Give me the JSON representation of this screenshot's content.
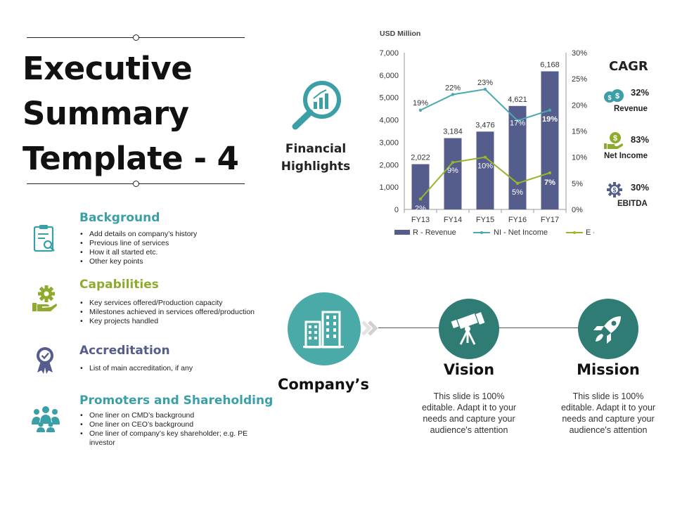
{
  "title": "Executive Summary Template - 4",
  "sections": [
    {
      "heading": "Background",
      "icon": "clipboard-search-icon",
      "color": "#3a9fa6",
      "bullets": [
        "Add details on company’s history",
        "Previous line of services",
        "How it all started etc.",
        "Other key points"
      ]
    },
    {
      "heading": "Capabilities",
      "icon": "gear-hand-icon",
      "color": "#8fab2e",
      "bullets": [
        "Key services offered/Production capacity",
        "Milestones achieved in services offered/production",
        "Key projects handled"
      ]
    },
    {
      "heading": "Accreditation",
      "icon": "award-ribbon-icon",
      "color": "#545d8c",
      "bullets": [
        "List of main accreditation, if any"
      ]
    },
    {
      "heading": "Promoters and Shareholding",
      "icon": "people-group-icon",
      "color": "#3a9fa6",
      "bullets": [
        "One liner on CMD’s background",
        "One liner on CEO’s background",
        "One liner of company’s key shareholder; e.g. PE investor"
      ]
    }
  ],
  "financial": {
    "label": "Financial Highlights",
    "icon": "magnifier-chart-icon"
  },
  "chart_data": {
    "type": "bar",
    "ylabel": "USD Million",
    "categories": [
      "FY13",
      "FY14",
      "FY15",
      "FY16",
      "FY17"
    ],
    "ylim": [
      0,
      7000
    ],
    "y_ticks": [
      "0",
      "1,000",
      "2,000",
      "3,000",
      "4,000",
      "5,000",
      "6,000",
      "7,000"
    ],
    "y2lim": [
      0,
      30
    ],
    "y2_ticks": [
      "0%",
      "5%",
      "10%",
      "15%",
      "20%",
      "25%",
      "30%"
    ],
    "series": [
      {
        "name": "R - Revenue",
        "type": "bar",
        "axis": "left",
        "values": [
          2022,
          3184,
          3476,
          4621,
          6168
        ],
        "labels": [
          "2,022",
          "3,184",
          "3,476",
          "4,621",
          "6,168"
        ],
        "color": "#545d8c"
      },
      {
        "name": "NI - Net Income",
        "type": "line",
        "axis": "right",
        "values": [
          19,
          22,
          23,
          17,
          19
        ],
        "labels": [
          "19%",
          "22%",
          "23%",
          "17%",
          "19%"
        ],
        "color": "#4aa9b0"
      },
      {
        "name": "E - EBITDA",
        "type": "line",
        "axis": "right",
        "values": [
          2,
          9,
          10,
          5,
          7
        ],
        "labels": [
          "2%",
          "9%",
          "10%",
          "5%",
          "7%"
        ],
        "color": "#9ab52b"
      }
    ],
    "grid": false,
    "legend": "bottom"
  },
  "cagr": {
    "title": "CAGR",
    "items": [
      {
        "value": "32%",
        "name": "Revenue",
        "icon": "money-bag-icon"
      },
      {
        "value": "83%",
        "name": "Net Income",
        "icon": "dollar-hand-icon"
      },
      {
        "value": "30%",
        "name": "EBITDA",
        "icon": "dollar-gear-icon"
      }
    ]
  },
  "company": {
    "label": "Company’s",
    "icon": "building-icon"
  },
  "vision": {
    "label": "Vision",
    "icon": "telescope-icon",
    "text": "This slide is 100% editable. Adapt it to your needs and capture your audience's attention"
  },
  "mission": {
    "label": "Mission",
    "icon": "rocket-icon",
    "text": "This slide is 100% editable. Adapt it to your needs and capture your audience's attention"
  },
  "colors": {
    "teal": "#3a9fa6",
    "dark_teal": "#2f7c74",
    "navy": "#545d8c",
    "green": "#8fab2e"
  }
}
